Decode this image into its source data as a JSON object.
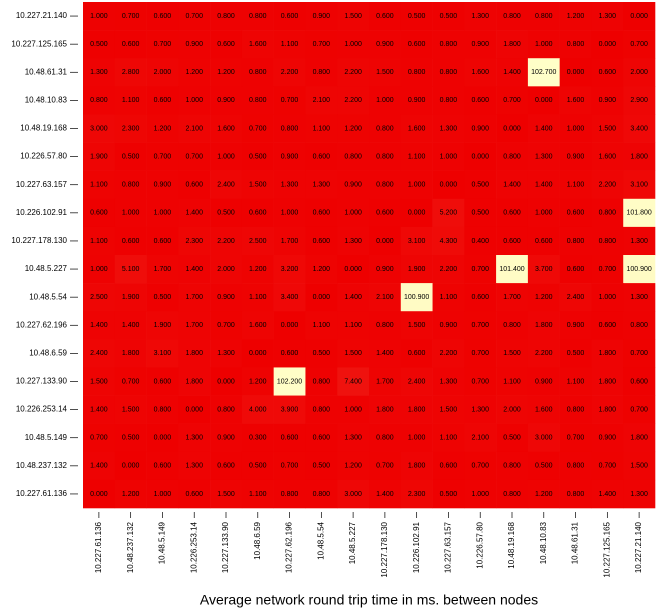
{
  "chart_data": {
    "type": "heatmap",
    "x_label": "Average network round trip time in ms. between nodes",
    "rows": [
      "10.227.21.140",
      "10.227.125.165",
      "10.48.61.31",
      "10.48.10.83",
      "10.48.19.168",
      "10.226.57.80",
      "10.227.63.157",
      "10.226.102.91",
      "10.227.178.130",
      "10.48.5.227",
      "10.48.5.54",
      "10.227.62.196",
      "10.48.6.59",
      "10.227.133.90",
      "10.226.253.14",
      "10.48.5.149",
      "10.48.237.132",
      "10.227.61.136"
    ],
    "columns": [
      "10.227.61.136",
      "10.48.237.132",
      "10.48.5.149",
      "10.226.253.14",
      "10.227.133.90",
      "10.48.6.59",
      "10.227.62.196",
      "10.48.5.54",
      "10.48.5.227",
      "10.227.178.130",
      "10.226.102.91",
      "10.227.63.157",
      "10.226.57.80",
      "10.48.19.168",
      "10.48.10.83",
      "10.48.61.31",
      "10.227.125.165",
      "10.227.21.140"
    ],
    "low_color": "#ee0000",
    "high_color": "#ffffc8",
    "values": [
      [
        1,
        0.7,
        0.6,
        0.7,
        0.8,
        0.8,
        0.6,
        0.9,
        1.5,
        0.6,
        0.5,
        0.5,
        1.3,
        0.8,
        0.8,
        1.2,
        1.3,
        0
      ],
      [
        0.5,
        0.6,
        0.7,
        0.9,
        0.6,
        1.6,
        1.1,
        0.7,
        1,
        0.9,
        0.6,
        0.8,
        0.9,
        1.8,
        1,
        0.8,
        0,
        0.7
      ],
      [
        1.3,
        2.8,
        2,
        1.2,
        1.2,
        0.8,
        2.2,
        0.8,
        2.2,
        1.5,
        0.8,
        0.8,
        1.6,
        1.4,
        102.7,
        0,
        0.6,
        2
      ],
      [
        0.8,
        1.1,
        0.6,
        1,
        0.9,
        0.8,
        0.7,
        2.1,
        2.2,
        1,
        0.9,
        0.8,
        0.6,
        0.7,
        0,
        1.6,
        0.9,
        2.9
      ],
      [
        3,
        2.3,
        1.2,
        2.1,
        1.6,
        0.7,
        0.8,
        1.1,
        1.2,
        0.8,
        1.6,
        1.3,
        0.9,
        0,
        1.4,
        1,
        1.5,
        3.4
      ],
      [
        1.9,
        0.5,
        0.7,
        0.7,
        1,
        0.5,
        0.9,
        0.6,
        0.8,
        0.8,
        1.1,
        1,
        0,
        0.8,
        1.3,
        0.9,
        1.6,
        1.8
      ],
      [
        1.1,
        0.8,
        0.9,
        0.6,
        2.4,
        1.5,
        1.3,
        1.3,
        0.9,
        0.8,
        1,
        0,
        0.5,
        1.4,
        1.4,
        1.1,
        2.2,
        3.1
      ],
      [
        0.6,
        1,
        1,
        1.4,
        0.5,
        0.6,
        1,
        0.6,
        1,
        0.6,
        0,
        5.2,
        0.5,
        0.6,
        1,
        0.6,
        0.8,
        101.8
      ],
      [
        1.1,
        0.6,
        0.6,
        2.3,
        2.2,
        2.5,
        1.7,
        0.6,
        1.3,
        0,
        3.1,
        4.3,
        0.4,
        0.6,
        0.6,
        0.8,
        0.8,
        1.3
      ],
      [
        1,
        5.1,
        1.7,
        1.4,
        2,
        1.2,
        3.2,
        1.2,
        0,
        0.9,
        1.9,
        2.2,
        0.7,
        101.4,
        3.7,
        0.6,
        0.7,
        100.9
      ],
      [
        2.5,
        1.9,
        0.5,
        1.7,
        0.9,
        1.1,
        3.4,
        0,
        1.4,
        2.1,
        100.9,
        1.1,
        0.6,
        1.7,
        1.2,
        2.4,
        1,
        1.3
      ],
      [
        1.4,
        1.4,
        1.9,
        1.7,
        0.7,
        1.6,
        0,
        1.1,
        1.1,
        0.8,
        1.5,
        0.9,
        0.7,
        0.8,
        1.8,
        0.9,
        0.6,
        0.8
      ],
      [
        2.4,
        1.8,
        3.1,
        1.8,
        1.3,
        0,
        0.6,
        0.5,
        1.5,
        1.4,
        0.6,
        2.2,
        0.7,
        1.5,
        2.2,
        0.5,
        1.8,
        0.7
      ],
      [
        1.5,
        0.7,
        0.6,
        1.8,
        0,
        1.2,
        102.2,
        0.8,
        7.4,
        1.7,
        2.4,
        1.3,
        0.7,
        1.1,
        0.9,
        1.1,
        1.8,
        0.6
      ],
      [
        1.4,
        1.5,
        0.8,
        0,
        0.8,
        4,
        3.9,
        0.8,
        1,
        1.8,
        1.8,
        1.5,
        1.3,
        2,
        1.6,
        0.8,
        1.8,
        0.7
      ],
      [
        0.7,
        0.5,
        0,
        1.3,
        0.9,
        0.3,
        0.6,
        0.6,
        1.3,
        0.8,
        1,
        1.1,
        2.1,
        0.5,
        3,
        0.7,
        0.9,
        1.8
      ],
      [
        1.4,
        0,
        0.6,
        1.3,
        0.6,
        0.5,
        0.7,
        0.5,
        1.2,
        0.7,
        1.8,
        0.6,
        0.7,
        0.8,
        0.5,
        0.8,
        0.7,
        1.5
      ],
      [
        0,
        1.2,
        1,
        0.6,
        1.5,
        1.1,
        0.8,
        0.8,
        3,
        1.4,
        2.3,
        0.5,
        1,
        0.8,
        1.2,
        0.8,
        1.4,
        1.3
      ]
    ],
    "value_labels": [
      [
        "1.000",
        "0.700",
        "0.600",
        "0.700",
        "0.800",
        "0.800",
        "0.600",
        "0.900",
        "1.500",
        "0.600",
        "0.500",
        "0.500",
        "1.300",
        "0.800",
        "0.800",
        "1.200",
        "1.300",
        "0.000"
      ],
      [
        "0.500",
        "0.600",
        "0.700",
        "0.900",
        "0.600",
        "1.600",
        "1.100",
        "0.700",
        "1.000",
        "0.900",
        "0.600",
        "0.800",
        "0.900",
        "1.800",
        "1.000",
        "0.800",
        "0.000",
        "0.700"
      ],
      [
        "1.300",
        "2.800",
        "2.000",
        "1.200",
        "1.200",
        "0.800",
        "2.200",
        "0.800",
        "2.200",
        "1.500",
        "0.800",
        "0.800",
        "1.600",
        "1.400",
        "102.700",
        "0.000",
        "0.600",
        "2.000"
      ],
      [
        "0.800",
        "1.100",
        "0.600",
        "1.000",
        "0.900",
        "0.800",
        "0.700",
        "2.100",
        "2.200",
        "1.000",
        "0.900",
        "0.800",
        "0.600",
        "0.700",
        "0.000",
        "1.600",
        "0.900",
        "2.900"
      ],
      [
        "3.000",
        "2.300",
        "1.200",
        "2.100",
        "1.600",
        "0.700",
        "0.800",
        "1.100",
        "1.200",
        "0.800",
        "1.600",
        "1.300",
        "0.900",
        "0.000",
        "1.400",
        "1.000",
        "1.500",
        "3.400"
      ],
      [
        "1.900",
        "0.500",
        "0.700",
        "0.700",
        "1.000",
        "0.500",
        "0.900",
        "0.600",
        "0.800",
        "0.800",
        "1.100",
        "1.000",
        "0.000",
        "0.800",
        "1.300",
        "0.900",
        "1.600",
        "1.800"
      ],
      [
        "1.100",
        "0.800",
        "0.900",
        "0.600",
        "2.400",
        "1.500",
        "1.300",
        "1.300",
        "0.900",
        "0.800",
        "1.000",
        "0.000",
        "0.500",
        "1.400",
        "1.400",
        "1.100",
        "2.200",
        "3.100"
      ],
      [
        "0.600",
        "1.000",
        "1.000",
        "1.400",
        "0.500",
        "0.600",
        "1.000",
        "0.600",
        "1.000",
        "0.600",
        "0.000",
        "5.200",
        "0.500",
        "0.600",
        "1.000",
        "0.600",
        "0.800",
        "101.800"
      ],
      [
        "1.100",
        "0.600",
        "0.600",
        "2.300",
        "2.200",
        "2.500",
        "1.700",
        "0.600",
        "1.300",
        "0.000",
        "3.100",
        "4.300",
        "0.400",
        "0.600",
        "0.600",
        "0.800",
        "0.800",
        "1.300"
      ],
      [
        "1.000",
        "5.100",
        "1.700",
        "1.400",
        "2.000",
        "1.200",
        "3.200",
        "1.200",
        "0.000",
        "0.900",
        "1.900",
        "2.200",
        "0.700",
        "101.400",
        "3.700",
        "0.600",
        "0.700",
        "100.900"
      ],
      [
        "2.500",
        "1.900",
        "0.500",
        "1.700",
        "0.900",
        "1.100",
        "3.400",
        "0.000",
        "1.400",
        "2.100",
        "100.900",
        "1.100",
        "0.600",
        "1.700",
        "1.200",
        "2.400",
        "1.000",
        "1.300"
      ],
      [
        "1.400",
        "1.400",
        "1.900",
        "1.700",
        "0.700",
        "1.600",
        "0.000",
        "1.100",
        "1.100",
        "0.800",
        "1.500",
        "0.900",
        "0.700",
        "0.800",
        "1.800",
        "0.900",
        "0.600",
        "0.800"
      ],
      [
        "2.400",
        "1.800",
        "3.100",
        "1.800",
        "1.300",
        "0.000",
        "0.600",
        "0.500",
        "1.500",
        "1.400",
        "0.600",
        "2.200",
        "0.700",
        "1.500",
        "2.200",
        "0.500",
        "1.800",
        "0.700"
      ],
      [
        "1.500",
        "0.700",
        "0.600",
        "1.800",
        "0.000",
        "1.200",
        "102.200",
        "0.800",
        "7.400",
        "1.700",
        "2.400",
        "1.300",
        "0.700",
        "1.100",
        "0.900",
        "1.100",
        "1.800",
        "0.600"
      ],
      [
        "1.400",
        "1.500",
        "0.800",
        "0.000",
        "0.800",
        "4.000",
        "3.900",
        "0.800",
        "1.000",
        "1.800",
        "1.800",
        "1.500",
        "1.300",
        "2.000",
        "1.600",
        "0.800",
        "1.800",
        "0.700"
      ],
      [
        "0.700",
        "0.500",
        "0.000",
        "1.300",
        "0.900",
        "0.300",
        "0.600",
        "0.600",
        "1.300",
        "0.800",
        "1.000",
        "1.100",
        "2.100",
        "0.500",
        "3.000",
        "0.700",
        "0.900",
        "1.800"
      ],
      [
        "1.400",
        "0.000",
        "0.600",
        "1.300",
        "0.600",
        "0.500",
        "0.700",
        "0.500",
        "1.200",
        "0.700",
        "1.800",
        "0.600",
        "0.700",
        "0.800",
        "0.500",
        "0.800",
        "0.700",
        "1.500"
      ],
      [
        "0.000",
        "1.200",
        "1.000",
        "0.600",
        "1.500",
        "1.100",
        "0.800",
        "0.800",
        "3.000",
        "1.400",
        "2.300",
        "0.500",
        "1.000",
        "0.800",
        "1.200",
        "0.800",
        "1.400",
        "1.300"
      ]
    ]
  }
}
